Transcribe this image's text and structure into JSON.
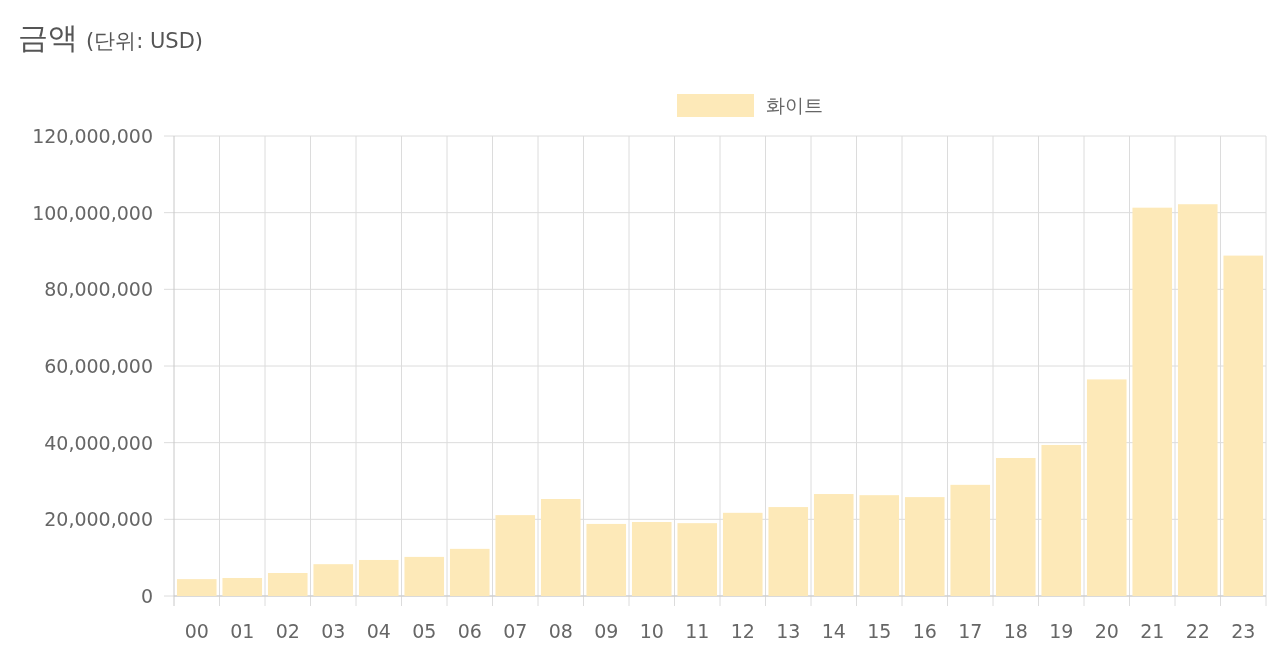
{
  "chart_data": {
    "type": "bar",
    "title": "금액",
    "subtitle": "(단위: USD)",
    "categories": [
      "00",
      "01",
      "02",
      "03",
      "04",
      "05",
      "06",
      "07",
      "08",
      "09",
      "10",
      "11",
      "12",
      "13",
      "14",
      "15",
      "16",
      "17",
      "18",
      "19",
      "20",
      "21",
      "22",
      "23"
    ],
    "series": [
      {
        "name": "화이트",
        "color": "#fde9b8",
        "values": [
          4400000,
          4700000,
          6000000,
          8300000,
          9400000,
          10200000,
          12300000,
          21100000,
          25300000,
          18800000,
          19300000,
          19000000,
          21700000,
          23200000,
          26600000,
          26300000,
          25800000,
          29000000,
          36000000,
          39400000,
          56500000,
          101300000,
          102200000,
          88800000
        ]
      }
    ],
    "ylim": [
      0,
      120000000
    ],
    "yticks": [
      0,
      {
        "value": 20000000,
        "label": "20,000,000"
      },
      {
        "value": 40000000,
        "label": "40,000,000"
      },
      {
        "value": 60000000,
        "label": "60,000,000"
      },
      {
        "value": 80000000,
        "label": "80,000,000"
      },
      {
        "value": 100000000,
        "label": "100,000,000"
      },
      {
        "value": 120000000,
        "label": "120,000,000"
      }
    ],
    "grid": true,
    "legend": "top"
  }
}
